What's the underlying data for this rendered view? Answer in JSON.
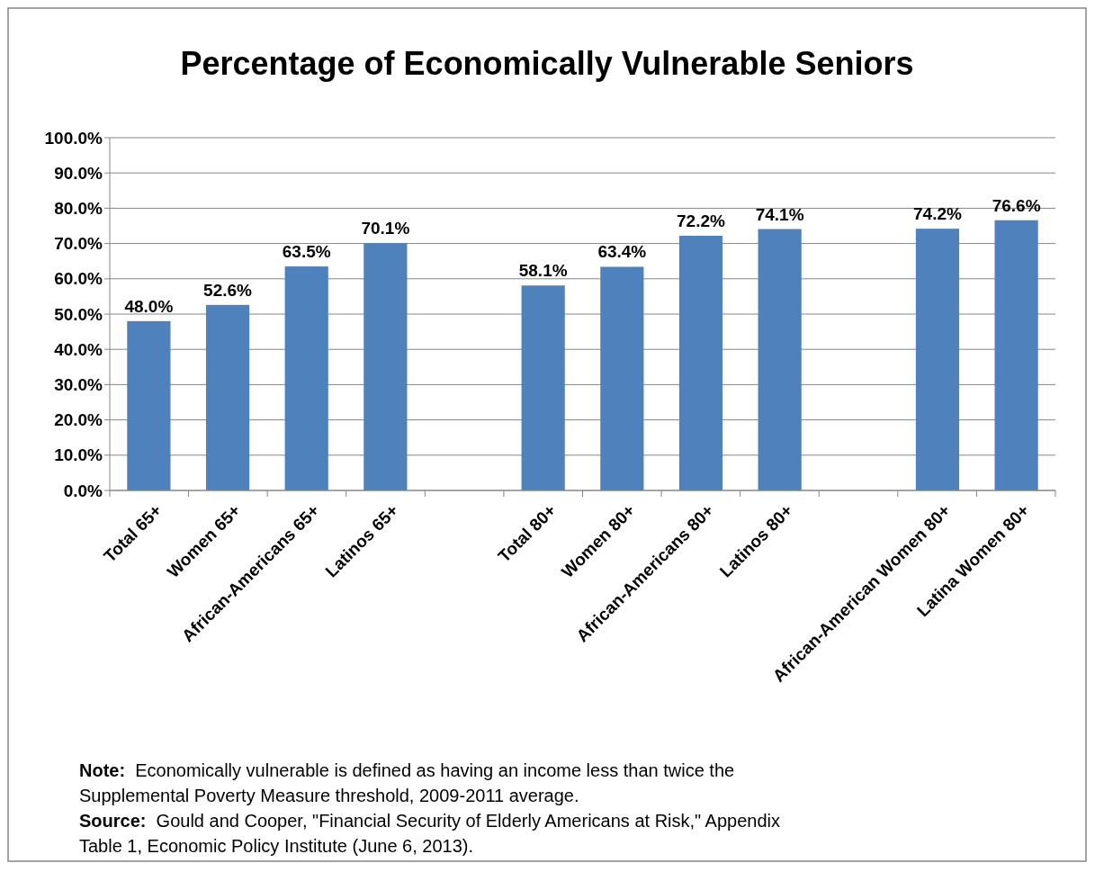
{
  "chart_data": {
    "type": "bar",
    "title": "Percentage of Economically Vulnerable Seniors",
    "categories": [
      "Total  65+",
      "Women 65+",
      "African-Americans 65+",
      "Latinos 65+",
      null,
      "Total 80+",
      "Women 80+",
      "African-Americans 80+",
      "Latinos 80+",
      null,
      "African-American Women 80+",
      "Latina Women 80+"
    ],
    "values": [
      48.0,
      52.6,
      63.5,
      70.1,
      null,
      58.1,
      63.4,
      72.2,
      74.1,
      null,
      74.2,
      76.6
    ],
    "value_labels": [
      "48.0%",
      "52.6%",
      "63.5%",
      "70.1%",
      null,
      "58.1%",
      "63.4%",
      "72.2%",
      "74.1%",
      null,
      "74.2%",
      "76.6%"
    ],
    "color": "#4f81bd",
    "ylim": [
      0,
      100
    ],
    "yticks": [
      {
        "value": 0,
        "label": "0.0%"
      },
      {
        "value": 10,
        "label": "10.0%"
      },
      {
        "value": 20,
        "label": "20.0%"
      },
      {
        "value": 30,
        "label": "30.0%"
      },
      {
        "value": 40,
        "label": "40.0%"
      },
      {
        "value": 50,
        "label": "50.0%"
      },
      {
        "value": 60,
        "label": "60.0%"
      },
      {
        "value": 70,
        "label": "70.0%"
      },
      {
        "value": 80,
        "label": "80.0%"
      },
      {
        "value": 90,
        "label": "90.0%"
      },
      {
        "value": 100,
        "label": "100.0%"
      }
    ],
    "grid": "y",
    "annotations": [
      "Note:  Economically vulnerable is defined as having an income less than twice the Supplemental Poverty Measure threshold, 2009-2011 average.",
      "Source:  Gould and Cooper, \"Financial Security of Elderly Americans at Risk,\" Appendix Table 1, Economic Policy Institute (June 6, 2013)."
    ]
  }
}
